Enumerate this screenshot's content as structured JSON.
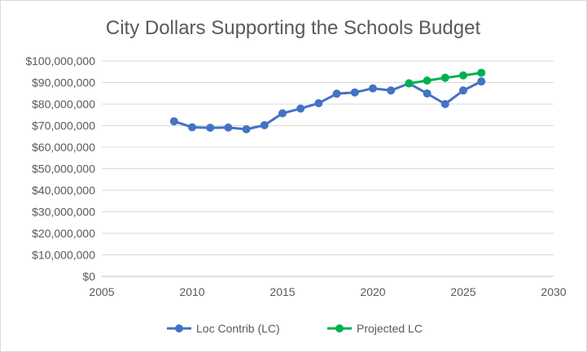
{
  "chart_data": {
    "type": "line",
    "title": "City Dollars Supporting the Schools Budget",
    "xlabel": "",
    "ylabel": "",
    "xlim": [
      2005,
      2030
    ],
    "ylim": [
      0,
      100000000
    ],
    "x_ticks": [
      2005,
      2010,
      2015,
      2020,
      2025,
      2030
    ],
    "x_tick_labels": [
      "2005",
      "2010",
      "2015",
      "2020",
      "2025",
      "2030"
    ],
    "y_ticks": [
      0,
      10000000,
      20000000,
      30000000,
      40000000,
      50000000,
      60000000,
      70000000,
      80000000,
      90000000,
      100000000
    ],
    "y_tick_labels": [
      "$0",
      "$10,000,000",
      "$20,000,000",
      "$30,000,000",
      "$40,000,000",
      "$50,000,000",
      "$60,000,000",
      "$70,000,000",
      "$80,000,000",
      "$90,000,000",
      "$100,000,000"
    ],
    "grid": "horizontal",
    "legend_position": "bottom",
    "series": [
      {
        "name": "Loc Contrib (LC)",
        "color": "#4472c4",
        "x": [
          2009,
          2010,
          2011,
          2012,
          2013,
          2014,
          2015,
          2016,
          2017,
          2018,
          2019,
          2020,
          2021,
          2022,
          2023,
          2024,
          2025,
          2026
        ],
        "values": [
          72000000,
          69200000,
          69000000,
          69100000,
          68300000,
          70200000,
          75700000,
          77900000,
          80400000,
          84800000,
          85400000,
          87300000,
          86300000,
          89600000,
          84900000,
          80000000,
          86300000,
          90500000
        ]
      },
      {
        "name": "Projected LC",
        "color": "#00b050",
        "x": [
          2022,
          2023,
          2024,
          2025,
          2026
        ],
        "values": [
          89600000,
          90900000,
          92200000,
          93300000,
          94500000
        ]
      }
    ]
  }
}
